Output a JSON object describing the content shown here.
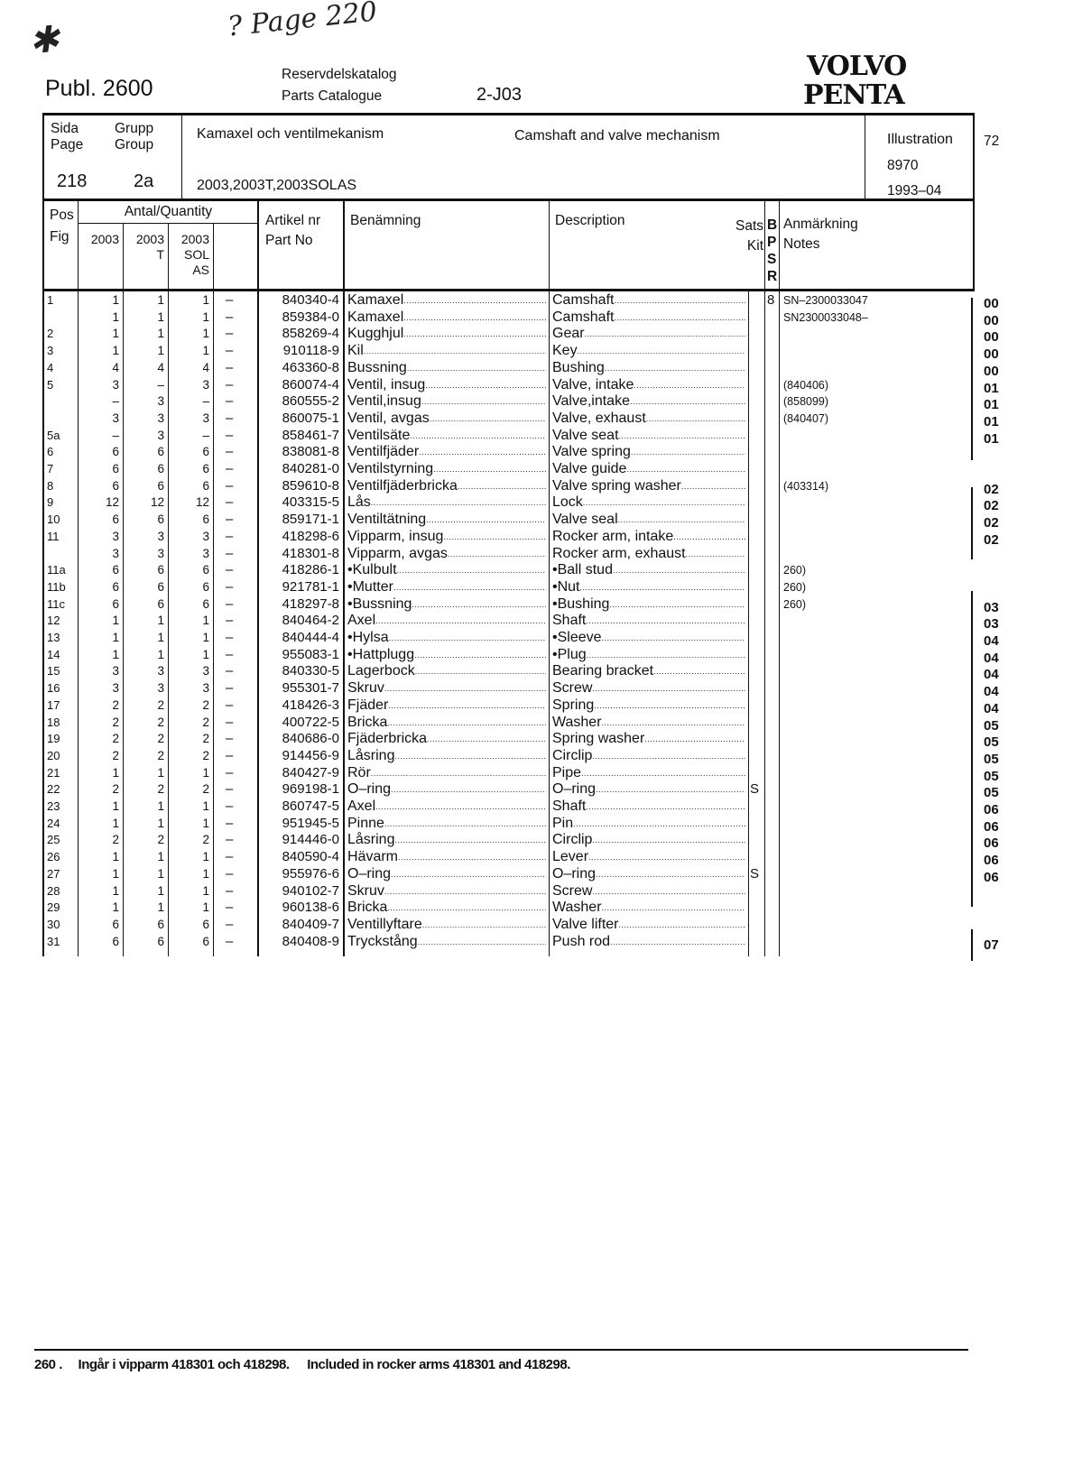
{
  "annotations": {
    "star": "✱",
    "page_note": "? Page 220"
  },
  "header": {
    "publ": "Publ. 2600",
    "catalog_sv": "Reservdelskatalog",
    "catalog_en": "Parts Catalogue",
    "code": "2-J03",
    "logo_line1": "VOLVO",
    "logo_line2": "PENTA"
  },
  "titlebox": {
    "sida_label": "Sida",
    "page_label": "Page",
    "grupp_label": "Grupp",
    "group_label": "Group",
    "page": "218",
    "group": "2a",
    "title_sv": "Kamaxel och ventilmekanism",
    "title_en": "Camshaft and valve mechanism",
    "models": "2003,2003T,2003SOLAS",
    "illustration_label": "Illustration",
    "illustration_no": "8970",
    "date": "1993–04",
    "side_number": "72"
  },
  "table_header": {
    "pos": "Pos",
    "fig": "Fig",
    "quantity": "Antal/Quantity",
    "q1": "2003",
    "q2a": "2003",
    "q2b": "T",
    "q3a": "2003",
    "q3b": "SOL",
    "q3c": "AS",
    "artikel": "Artikel nr",
    "partno": "Part No",
    "benamning": "Benämning",
    "description": "Description",
    "sats": "Sats",
    "kit": "Kit",
    "b": "B",
    "p": "P",
    "s": "S",
    "r": "R",
    "anmarkning": "Anmärkning",
    "notes": "Notes"
  },
  "rows": [
    {
      "pos": "1",
      "q1": "1",
      "q2": "1",
      "q3": "1",
      "q4": "–",
      "part": "840340-4",
      "sv": "Kamaxel",
      "en": "Camshaft",
      "kit": "",
      "bpsr": "8",
      "note": "SN–2300033047"
    },
    {
      "pos": "",
      "q1": "1",
      "q2": "1",
      "q3": "1",
      "q4": "–",
      "part": "859384-0",
      "sv": "Kamaxel",
      "en": "Camshaft",
      "kit": "",
      "bpsr": "",
      "note": "SN2300033048–"
    },
    {
      "pos": "2",
      "q1": "1",
      "q2": "1",
      "q3": "1",
      "q4": "–",
      "part": "858269-4",
      "sv": "Kugghjul",
      "en": "Gear",
      "kit": "",
      "bpsr": "",
      "note": ""
    },
    {
      "pos": "3",
      "q1": "1",
      "q2": "1",
      "q3": "1",
      "q4": "–",
      "part": "910118-9",
      "sv": "Kil",
      "en": "Key",
      "kit": "",
      "bpsr": "",
      "note": ""
    },
    {
      "pos": "4",
      "q1": "4",
      "q2": "4",
      "q3": "4",
      "q4": "–",
      "part": "463360-8",
      "sv": "Bussning",
      "en": "Bushing",
      "kit": "",
      "bpsr": "",
      "note": ""
    },
    {
      "pos": "5",
      "q1": "3",
      "q2": "–",
      "q3": "3",
      "q4": "–",
      "part": "860074-4",
      "sv": "Ventil, insug",
      "en": "Valve, intake",
      "kit": "",
      "bpsr": "",
      "note": "(840406)"
    },
    {
      "pos": "",
      "q1": "–",
      "q2": "3",
      "q3": "–",
      "q4": "–",
      "part": "860555-2",
      "sv": "Ventil,insug",
      "en": "Valve,intake",
      "kit": "",
      "bpsr": "",
      "note": "(858099)"
    },
    {
      "pos": "",
      "q1": "3",
      "q2": "3",
      "q3": "3",
      "q4": "–",
      "part": "860075-1",
      "sv": "Ventil, avgas",
      "en": "Valve, exhaust",
      "kit": "",
      "bpsr": "",
      "note": "(840407)"
    },
    {
      "pos": "5a",
      "q1": "–",
      "q2": "3",
      "q3": "–",
      "q4": "–",
      "part": "858461-7",
      "sv": "Ventilsäte",
      "en": "Valve seat",
      "kit": "",
      "bpsr": "",
      "note": ""
    },
    {
      "pos": "6",
      "q1": "6",
      "q2": "6",
      "q3": "6",
      "q4": "–",
      "part": "838081-8",
      "sv": "Ventilfjäder",
      "en": "Valve spring",
      "kit": "",
      "bpsr": "",
      "note": ""
    },
    {
      "pos": "7",
      "q1": "6",
      "q2": "6",
      "q3": "6",
      "q4": "–",
      "part": "840281-0",
      "sv": "Ventilstyrning",
      "en": "Valve guide",
      "kit": "",
      "bpsr": "",
      "note": ""
    },
    {
      "pos": "8",
      "q1": "6",
      "q2": "6",
      "q3": "6",
      "q4": "–",
      "part": "859610-8",
      "sv": "Ventilfjäderbricka",
      "en": "Valve spring washer",
      "kit": "",
      "bpsr": "",
      "note": "(403314)"
    },
    {
      "pos": "9",
      "q1": "12",
      "q2": "12",
      "q3": "12",
      "q4": "–",
      "part": "403315-5",
      "sv": "Lås",
      "en": "Lock",
      "kit": "",
      "bpsr": "",
      "note": ""
    },
    {
      "pos": "10",
      "q1": "6",
      "q2": "6",
      "q3": "6",
      "q4": "–",
      "part": "859171-1",
      "sv": "Ventiltätning",
      "en": "Valve seal",
      "kit": "",
      "bpsr": "",
      "note": ""
    },
    {
      "pos": "11",
      "q1": "3",
      "q2": "3",
      "q3": "3",
      "q4": "–",
      "part": "418298-6",
      "sv": "Vipparm, insug",
      "en": "Rocker arm, intake",
      "kit": "",
      "bpsr": "",
      "note": ""
    },
    {
      "pos": "",
      "q1": "3",
      "q2": "3",
      "q3": "3",
      "q4": "–",
      "part": "418301-8",
      "sv": "Vipparm, avgas",
      "en": "Rocker arm, exhaust",
      "kit": "",
      "bpsr": "",
      "note": ""
    },
    {
      "pos": "11a",
      "q1": "6",
      "q2": "6",
      "q3": "6",
      "q4": "–",
      "part": "418286-1",
      "sv": "•Kulbult",
      "en": "•Ball stud",
      "kit": "",
      "bpsr": "",
      "note": "260)"
    },
    {
      "pos": "11b",
      "q1": "6",
      "q2": "6",
      "q3": "6",
      "q4": "–",
      "part": "921781-1",
      "sv": "•Mutter",
      "en": "•Nut",
      "kit": "",
      "bpsr": "",
      "note": "260)"
    },
    {
      "pos": "11c",
      "q1": "6",
      "q2": "6",
      "q3": "6",
      "q4": "–",
      "part": "418297-8",
      "sv": "•Bussning",
      "en": "•Bushing",
      "kit": "",
      "bpsr": "",
      "note": "260)"
    },
    {
      "pos": "12",
      "q1": "1",
      "q2": "1",
      "q3": "1",
      "q4": "–",
      "part": "840464-2",
      "sv": "Axel",
      "en": "Shaft",
      "kit": "",
      "bpsr": "",
      "note": ""
    },
    {
      "pos": "13",
      "q1": "1",
      "q2": "1",
      "q3": "1",
      "q4": "–",
      "part": "840444-4",
      "sv": "•Hylsa",
      "en": "•Sleeve",
      "kit": "",
      "bpsr": "",
      "note": ""
    },
    {
      "pos": "14",
      "q1": "1",
      "q2": "1",
      "q3": "1",
      "q4": "–",
      "part": "955083-1",
      "sv": "•Hattplugg",
      "en": "•Plug",
      "kit": "",
      "bpsr": "",
      "note": ""
    },
    {
      "pos": "15",
      "q1": "3",
      "q2": "3",
      "q3": "3",
      "q4": "–",
      "part": "840330-5",
      "sv": "Lagerbock",
      "en": "Bearing bracket",
      "kit": "",
      "bpsr": "",
      "note": ""
    },
    {
      "pos": "16",
      "q1": "3",
      "q2": "3",
      "q3": "3",
      "q4": "–",
      "part": "955301-7",
      "sv": "Skruv",
      "en": "Screw",
      "kit": "",
      "bpsr": "",
      "note": ""
    },
    {
      "pos": "17",
      "q1": "2",
      "q2": "2",
      "q3": "2",
      "q4": "–",
      "part": "418426-3",
      "sv": "Fjäder",
      "en": "Spring",
      "kit": "",
      "bpsr": "",
      "note": ""
    },
    {
      "pos": "18",
      "q1": "2",
      "q2": "2",
      "q3": "2",
      "q4": "–",
      "part": "400722-5",
      "sv": "Bricka",
      "en": "Washer",
      "kit": "",
      "bpsr": "",
      "note": ""
    },
    {
      "pos": "19",
      "q1": "2",
      "q2": "2",
      "q3": "2",
      "q4": "–",
      "part": "840686-0",
      "sv": "Fjäderbricka",
      "en": "Spring washer",
      "kit": "",
      "bpsr": "",
      "note": ""
    },
    {
      "pos": "20",
      "q1": "2",
      "q2": "2",
      "q3": "2",
      "q4": "–",
      "part": "914456-9",
      "sv": "Låsring",
      "en": "Circlip",
      "kit": "",
      "bpsr": "",
      "note": ""
    },
    {
      "pos": "21",
      "q1": "1",
      "q2": "1",
      "q3": "1",
      "q4": "–",
      "part": "840427-9",
      "sv": "Rör",
      "en": "Pipe",
      "kit": "",
      "bpsr": "",
      "note": ""
    },
    {
      "pos": "22",
      "q1": "2",
      "q2": "2",
      "q3": "2",
      "q4": "–",
      "part": "969198-1",
      "sv": "O–ring",
      "en": "O–ring",
      "kit": "S",
      "bpsr": "",
      "note": ""
    },
    {
      "pos": "23",
      "q1": "1",
      "q2": "1",
      "q3": "1",
      "q4": "–",
      "part": "860747-5",
      "sv": "Axel",
      "en": "Shaft",
      "kit": "",
      "bpsr": "",
      "note": ""
    },
    {
      "pos": "24",
      "q1": "1",
      "q2": "1",
      "q3": "1",
      "q4": "–",
      "part": "951945-5",
      "sv": "Pinne",
      "en": "Pin",
      "kit": "",
      "bpsr": "",
      "note": ""
    },
    {
      "pos": "25",
      "q1": "2",
      "q2": "2",
      "q3": "2",
      "q4": "–",
      "part": "914446-0",
      "sv": "Låsring",
      "en": "Circlip",
      "kit": "",
      "bpsr": "",
      "note": ""
    },
    {
      "pos": "26",
      "q1": "1",
      "q2": "1",
      "q3": "1",
      "q4": "–",
      "part": "840590-4",
      "sv": "Hävarm",
      "en": "Lever",
      "kit": "",
      "bpsr": "",
      "note": ""
    },
    {
      "pos": "27",
      "q1": "1",
      "q2": "1",
      "q3": "1",
      "q4": "–",
      "part": "955976-6",
      "sv": "O–ring",
      "en": "O–ring",
      "kit": "S",
      "bpsr": "",
      "note": ""
    },
    {
      "pos": "28",
      "q1": "1",
      "q2": "1",
      "q3": "1",
      "q4": "–",
      "part": "940102-7",
      "sv": "Skruv",
      "en": "Screw",
      "kit": "",
      "bpsr": "",
      "note": ""
    },
    {
      "pos": "29",
      "q1": "1",
      "q2": "1",
      "q3": "1",
      "q4": "–",
      "part": "960138-6",
      "sv": "Bricka",
      "en": "Washer",
      "kit": "",
      "bpsr": "",
      "note": ""
    },
    {
      "pos": "30",
      "q1": "6",
      "q2": "6",
      "q3": "6",
      "q4": "–",
      "part": "840409-7",
      "sv": "Ventillyftare",
      "en": "Valve lifter",
      "kit": "",
      "bpsr": "",
      "note": ""
    },
    {
      "pos": "31",
      "q1": "6",
      "q2": "6",
      "q3": "6",
      "q4": "–",
      "part": "840408-9",
      "sv": "Tryckstång",
      "en": "Push rod",
      "kit": "",
      "bpsr": "",
      "note": ""
    }
  ],
  "margin_codes": [
    "00",
    "00",
    "00",
    "00",
    "00",
    "01",
    "01",
    "01",
    "01",
    "",
    "",
    "02",
    "02",
    "02",
    "02",
    "",
    "",
    "",
    "03",
    "03",
    "04",
    "04",
    "04",
    "04",
    "04",
    "05",
    "05",
    "05",
    "05",
    "05",
    "06",
    "06",
    "06",
    "06",
    "06",
    "",
    "",
    "",
    "07"
  ],
  "footnote": {
    "number": "260 .",
    "sv": "Ingår i vipparm 418301 och 418298.",
    "en": "Included in rocker arms 418301 and 418298."
  }
}
